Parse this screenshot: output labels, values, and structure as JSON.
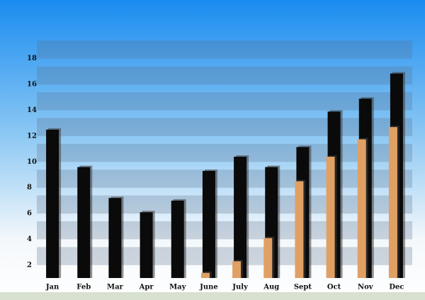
{
  "chart_data": {
    "type": "bar",
    "categories": [
      "Jan",
      "Feb",
      "Mar",
      "Apr",
      "May",
      "June",
      "July",
      "Aug",
      "Sept",
      "Oct",
      "Nov",
      "Dec"
    ],
    "series": [
      {
        "color": "#0a0a0a",
        "values": [
          12.5,
          9.6,
          7.2,
          6.1,
          7.0,
          9.3,
          10.4,
          9.6,
          11.15,
          13.9,
          14.9,
          16.85
        ]
      },
      {
        "color": "#e0a064",
        "values": [
          null,
          null,
          null,
          null,
          null,
          1.4,
          2.3,
          4.1,
          8.5,
          10.4,
          11.75,
          12.7
        ]
      }
    ],
    "ylim": [
      1,
      18.7
    ],
    "yticks": [
      2,
      4,
      6,
      8,
      10,
      12,
      14,
      16,
      18
    ],
    "grid": true
  }
}
